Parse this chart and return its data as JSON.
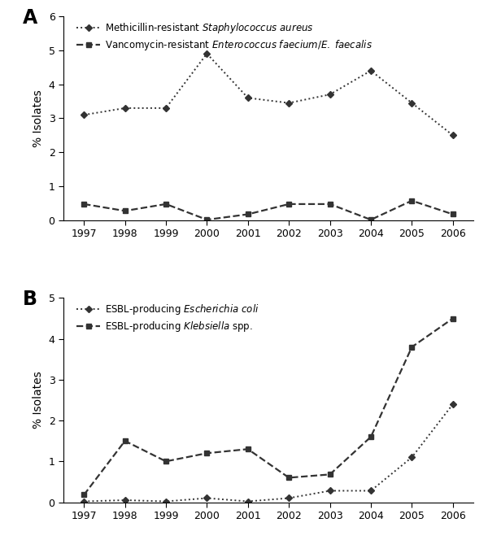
{
  "years": [
    1997,
    1998,
    1999,
    2000,
    2001,
    2002,
    2003,
    2004,
    2005,
    2006
  ],
  "panel_A": {
    "mrsa": [
      3.1,
      3.3,
      3.3,
      4.9,
      3.6,
      3.45,
      3.7,
      4.4,
      3.45,
      2.5
    ],
    "vre": [
      0.48,
      0.28,
      0.48,
      0.02,
      0.18,
      0.48,
      0.48,
      0.02,
      0.58,
      0.18
    ],
    "ylim": [
      0,
      6
    ],
    "yticks": [
      0,
      1,
      2,
      3,
      4,
      5,
      6
    ],
    "label1": "Methicillin-resistant $\\mathit{Staphylococcus\\ aureus}$",
    "label2": "Vancomycin-resistant $\\mathit{Enterococcus\\ faecium/E.\\ faecalis}$"
  },
  "panel_B": {
    "ecoli": [
      0.02,
      0.05,
      0.02,
      0.1,
      0.02,
      0.1,
      0.28,
      0.28,
      1.1,
      2.4
    ],
    "klebsiella": [
      0.18,
      1.5,
      1.0,
      1.2,
      1.3,
      0.6,
      0.68,
      1.6,
      3.8,
      4.5
    ],
    "ylim": [
      0,
      5
    ],
    "yticks": [
      0,
      1,
      2,
      3,
      4,
      5
    ],
    "label1": "ESBL-producing $\\mathit{Escherichia\\ coli}$",
    "label2": "ESBL-producing $\\mathit{Klebsiella}$ spp."
  },
  "ylabel": "% Isolates",
  "color": "#333333",
  "bg_color": "#ffffff",
  "panel_A_label": "A",
  "panel_B_label": "B"
}
